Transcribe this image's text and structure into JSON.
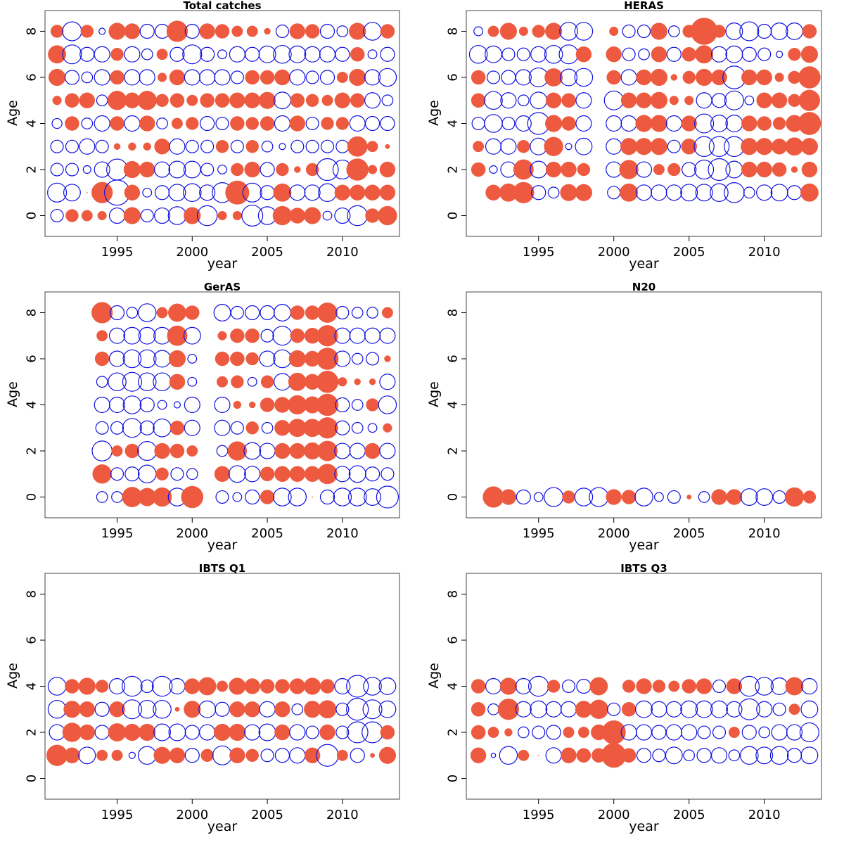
{
  "colors": {
    "positive": "#ee5a3f",
    "negative": "#1010e0",
    "frame": "#444444"
  },
  "chart_data": [
    {
      "type": "bubble",
      "title": "Total catches",
      "xlabel": "year",
      "ylabel": "Age",
      "xlim": [
        1990.2,
        2013.8
      ],
      "ylim": [
        -0.9,
        8.9
      ],
      "xticks": [
        1995,
        2000,
        2005,
        2010
      ],
      "yticks": [
        0,
        2,
        4,
        6,
        8
      ],
      "years": [
        1991,
        1992,
        1993,
        1994,
        1995,
        1996,
        1997,
        1998,
        1999,
        2000,
        2001,
        2002,
        2003,
        2004,
        2005,
        2006,
        2007,
        2008,
        2009,
        2010,
        2011,
        2012,
        2013
      ],
      "ages": [
        0,
        1,
        2,
        3,
        4,
        5,
        6,
        7,
        8
      ],
      "values": [
        [
          -0.4,
          0.4,
          0.3,
          0.2,
          -0.6,
          0.7,
          -0.4,
          -0.6,
          -0.8,
          0.7,
          -1.0,
          0.2,
          0.2,
          -1.1,
          -0.8,
          0.9,
          0.6,
          0.7,
          -0.2,
          -0.6,
          -1.0,
          0.5,
          0.9
        ],
        [
          -0.9,
          -0.7,
          0.0,
          1.1,
          -1.6,
          0.6,
          -0.2,
          -0.5,
          -0.7,
          -0.8,
          -0.6,
          -1.0,
          1.4,
          -0.9,
          -0.5,
          0.8,
          -0.6,
          -0.6,
          -0.8,
          0.6,
          0.6,
          0.6,
          0.6
        ],
        [
          -0.4,
          -0.4,
          -0.15,
          -0.6,
          -1.1,
          0.7,
          0.6,
          -0.6,
          -0.7,
          -0.7,
          -0.4,
          -0.2,
          0.4,
          0.6,
          -0.5,
          0.4,
          0.1,
          0.4,
          -1.2,
          -0.9,
          1.2,
          0.2,
          0.6
        ],
        [
          -0.4,
          -0.4,
          -0.6,
          -0.4,
          0.1,
          0.15,
          0.15,
          0.6,
          -0.6,
          -0.4,
          -0.4,
          0.4,
          -0.4,
          0.4,
          -0.3,
          -0.1,
          -0.4,
          -0.4,
          -0.4,
          -0.4,
          1.0,
          0.3,
          0.05
        ],
        [
          -0.25,
          0.5,
          -0.3,
          -0.6,
          0.5,
          -0.6,
          0.6,
          -0.3,
          0.3,
          0.4,
          -0.5,
          -0.4,
          0.5,
          0.4,
          0.5,
          -0.6,
          0.6,
          -0.4,
          0.4,
          0.4,
          -0.6,
          -0.5,
          -0.5
        ],
        [
          0.2,
          0.5,
          0.6,
          -0.3,
          0.9,
          0.6,
          0.9,
          0.4,
          0.5,
          0.3,
          0.5,
          0.5,
          0.6,
          0.6,
          0.7,
          -0.7,
          0.5,
          0.4,
          0.3,
          0.6,
          0.5,
          -0.6,
          -0.3
        ],
        [
          0.7,
          -0.5,
          -0.3,
          -0.6,
          0.5,
          -0.6,
          -0.6,
          0.2,
          0.6,
          -0.6,
          -0.6,
          -0.6,
          -0.4,
          0.5,
          0.5,
          0.6,
          -0.6,
          -0.4,
          -0.5,
          0.3,
          0.7,
          -0.6,
          -0.8
        ],
        [
          0.8,
          -0.9,
          -0.5,
          -0.6,
          0.4,
          -0.6,
          -0.3,
          0.3,
          -0.5,
          -0.9,
          -0.5,
          -0.2,
          -0.6,
          -0.5,
          -0.7,
          -0.8,
          -0.7,
          -0.6,
          -0.6,
          -0.5,
          0.5,
          -0.2,
          -0.5
        ],
        [
          0.4,
          -0.9,
          0.4,
          -0.1,
          0.7,
          0.6,
          -0.5,
          -0.5,
          1.1,
          -0.5,
          0.6,
          0.5,
          0.3,
          0.3,
          0.1,
          -0.4,
          0.6,
          0.5,
          -0.5,
          -0.3,
          0.7,
          -0.8,
          0.5
        ]
      ]
    },
    {
      "type": "bubble",
      "title": "HERAS",
      "xlabel": "year",
      "ylabel": "Age",
      "xlim": [
        1990.2,
        2013.8
      ],
      "ylim": [
        -0.9,
        8.9
      ],
      "xticks": [
        1995,
        2000,
        2005,
        2010
      ],
      "yticks": [
        0,
        2,
        4,
        6,
        8
      ],
      "years": [
        1991,
        1992,
        1993,
        1994,
        1995,
        1996,
        1997,
        1998,
        1999,
        2000,
        2001,
        2002,
        2003,
        2004,
        2005,
        2006,
        2007,
        2008,
        2009,
        2010,
        2011,
        2012,
        2013
      ],
      "ages": [
        0,
        1,
        2,
        3,
        4,
        5,
        6,
        7,
        8
      ],
      "values": [
        [
          null,
          null,
          null,
          null,
          null,
          null,
          null,
          null,
          null,
          null,
          null,
          null,
          null,
          null,
          null,
          null,
          null,
          null,
          null,
          null,
          null,
          null,
          null
        ],
        [
          null,
          0.6,
          0.8,
          1.1,
          -0.5,
          -0.3,
          0.7,
          0.7,
          null,
          -0.4,
          0.8,
          -0.6,
          -0.6,
          -0.6,
          -0.7,
          -0.7,
          -0.8,
          -1.0,
          -0.3,
          -0.6,
          -0.7,
          -0.5,
          0.8
        ],
        [
          0.5,
          -0.15,
          -0.6,
          1.0,
          -0.7,
          0.6,
          0.6,
          0.4,
          null,
          -0.6,
          0.9,
          -0.6,
          0.3,
          0.4,
          -0.5,
          -0.9,
          -1.2,
          -0.7,
          0.6,
          0.6,
          0.5,
          0.1,
          0.6
        ],
        [
          0.3,
          -0.6,
          -0.6,
          0.4,
          -0.7,
          0.9,
          -0.1,
          -0.7,
          null,
          -0.6,
          0.7,
          0.7,
          0.7,
          -0.4,
          0.6,
          -1.0,
          -1.0,
          -1.0,
          0.7,
          0.7,
          0.6,
          0.8,
          0.7
        ],
        [
          -0.4,
          -0.8,
          -0.4,
          -0.6,
          -1.2,
          0.7,
          0.5,
          -0.6,
          null,
          -0.6,
          -0.6,
          0.7,
          0.7,
          -0.6,
          0.6,
          -0.9,
          -0.7,
          -0.7,
          0.6,
          0.5,
          0.4,
          0.7,
          1.3
        ],
        [
          0.5,
          -0.8,
          -0.6,
          -0.3,
          -0.7,
          0.6,
          0.5,
          -0.6,
          null,
          -0.9,
          0.6,
          0.6,
          0.7,
          0.2,
          0.2,
          -0.6,
          -0.5,
          -0.9,
          -0.2,
          0.6,
          0.6,
          0.4,
          1.1
        ],
        [
          0.5,
          -0.4,
          -0.5,
          -0.6,
          -0.9,
          0.8,
          -0.7,
          -0.8,
          null,
          0.5,
          -0.6,
          0.6,
          0.7,
          0.1,
          0.4,
          0.7,
          0.6,
          -1.3,
          0.6,
          0.6,
          0.2,
          0.4,
          1.2
        ],
        [
          -0.8,
          -0.7,
          -0.4,
          -0.4,
          -0.6,
          -0.8,
          -0.9,
          0.6,
          null,
          0.6,
          -0.4,
          -0.3,
          0.6,
          -0.5,
          0.5,
          0.8,
          -0.6,
          -0.7,
          -0.5,
          -0.4,
          -0.1,
          0.4,
          0.7
        ],
        [
          -0.2,
          0.3,
          0.7,
          0.2,
          0.4,
          0.7,
          -0.8,
          -0.8,
          null,
          0.2,
          -0.4,
          -0.4,
          0.7,
          -0.3,
          0.4,
          1.8,
          0.4,
          -0.7,
          -0.9,
          -0.5,
          -0.7,
          -0.7,
          0.5
        ]
      ]
    },
    {
      "type": "bubble",
      "title": "GerAS",
      "xlabel": "year",
      "ylabel": "Age",
      "xlim": [
        1990.2,
        2013.8
      ],
      "ylim": [
        -0.9,
        8.9
      ],
      "xticks": [
        1995,
        2000,
        2005,
        2010
      ],
      "yticks": [
        0,
        2,
        4,
        6,
        8
      ],
      "years": [
        1991,
        1992,
        1993,
        1994,
        1995,
        1996,
        1997,
        1998,
        1999,
        2000,
        2001,
        2002,
        2003,
        2004,
        2005,
        2006,
        2007,
        2008,
        2009,
        2010,
        2011,
        2012,
        2013
      ],
      "ages": [
        0,
        1,
        2,
        3,
        4,
        5,
        6,
        7,
        8
      ],
      "values": [
        [
          null,
          null,
          null,
          -0.3,
          -0.3,
          1.0,
          0.8,
          0.9,
          -0.8,
          1.2,
          null,
          -0.4,
          -0.2,
          -0.5,
          0.5,
          -0.8,
          -0.8,
          0.0,
          -0.5,
          -0.8,
          -0.8,
          -0.7,
          -1.2
        ],
        [
          null,
          null,
          null,
          0.9,
          -0.4,
          -0.5,
          -0.8,
          0.4,
          -0.4,
          -0.3,
          null,
          0.6,
          -0.7,
          -0.6,
          0.5,
          0.6,
          0.6,
          0.6,
          1.0,
          -0.6,
          -0.7,
          -0.5,
          -0.4
        ],
        [
          null,
          null,
          null,
          -1.0,
          0.3,
          0.5,
          -0.9,
          0.6,
          0.5,
          0.3,
          null,
          -0.3,
          0.9,
          -0.7,
          -0.6,
          0.6,
          0.6,
          0.7,
          1.0,
          -0.6,
          -0.6,
          0.6,
          -0.6
        ],
        [
          null,
          null,
          null,
          -0.4,
          -0.4,
          -0.9,
          -0.5,
          -0.8,
          0.5,
          -0.6,
          null,
          -0.6,
          -0.4,
          0.4,
          -0.3,
          0.6,
          0.8,
          0.8,
          1.1,
          -0.5,
          -0.3,
          -0.2,
          0.2
        ],
        [
          null,
          null,
          null,
          -0.6,
          -0.6,
          -0.8,
          -0.5,
          -0.2,
          -0.1,
          -0.6,
          null,
          -0.6,
          0.15,
          0.1,
          0.5,
          0.6,
          0.9,
          0.7,
          1.2,
          -0.5,
          -0.3,
          0.4,
          -0.8
        ],
        [
          null,
          null,
          null,
          -0.3,
          -0.8,
          -0.9,
          -0.8,
          -0.8,
          0.6,
          -0.2,
          null,
          0.3,
          0.4,
          -0.2,
          0.4,
          -0.7,
          0.8,
          0.6,
          1.2,
          0.2,
          0.1,
          0.1,
          -0.6
        ],
        [
          null,
          null,
          null,
          0.5,
          -0.6,
          -0.8,
          -0.8,
          -0.7,
          0.7,
          -0.2,
          null,
          0.5,
          0.5,
          0.4,
          -0.6,
          -0.8,
          0.7,
          0.6,
          1.2,
          -0.6,
          -0.3,
          -0.4,
          0.1
        ],
        [
          null,
          null,
          null,
          0.3,
          -0.6,
          -0.7,
          -0.7,
          -0.7,
          1.0,
          -0.7,
          null,
          0.2,
          0.5,
          0.5,
          -0.4,
          -0.9,
          0.5,
          0.6,
          1.1,
          -0.6,
          -0.6,
          -0.6,
          -0.6
        ],
        [
          null,
          null,
          null,
          1.1,
          -0.5,
          -0.3,
          -0.8,
          0.3,
          0.8,
          0.5,
          null,
          -0.7,
          -0.4,
          -0.5,
          -0.5,
          -0.7,
          0.5,
          0.5,
          1.0,
          -0.4,
          -0.3,
          -0.3,
          0.3
        ]
      ]
    },
    {
      "type": "bubble",
      "title": "N20",
      "xlabel": "year",
      "ylabel": "Age",
      "xlim": [
        1990.2,
        2013.8
      ],
      "ylim": [
        -0.9,
        8.9
      ],
      "xticks": [
        1995,
        2000,
        2005,
        2010
      ],
      "yticks": [
        0,
        2,
        4,
        6,
        8
      ],
      "years": [
        1992,
        1993,
        1994,
        1995,
        1996,
        1997,
        1998,
        1999,
        2000,
        2001,
        2002,
        2003,
        2004,
        2005,
        2006,
        2007,
        2008,
        2009,
        2010,
        2011,
        2012,
        2013
      ],
      "ages": [
        0
      ],
      "values": [
        [
          1.1,
          0.6,
          -0.5,
          -0.2,
          -0.9,
          0.4,
          -0.8,
          -0.9,
          0.6,
          0.5,
          -0.8,
          -0.2,
          -0.4,
          0.05,
          -0.3,
          0.6,
          0.6,
          -0.7,
          -0.7,
          -0.4,
          0.9,
          0.4
        ]
      ]
    },
    {
      "type": "bubble",
      "title": "IBTS Q1",
      "xlabel": "year",
      "ylabel": "Age",
      "xlim": [
        1990.2,
        2013.8
      ],
      "ylim": [
        -0.9,
        8.9
      ],
      "xticks": [
        1995,
        2000,
        2005,
        2010
      ],
      "yticks": [
        0,
        2,
        4,
        6,
        8
      ],
      "years": [
        1991,
        1992,
        1993,
        1994,
        1995,
        1996,
        1997,
        1998,
        1999,
        2000,
        2001,
        2002,
        2003,
        2004,
        2005,
        2006,
        2007,
        2008,
        2009,
        2010,
        2011,
        2012,
        2013
      ],
      "ages": [
        1,
        2,
        3,
        4
      ],
      "values": [
        [
          1.1,
          0.6,
          -0.7,
          0.3,
          0.3,
          -0.1,
          -0.8,
          0.7,
          0.6,
          -0.5,
          0.4,
          -0.9,
          0.6,
          0.4,
          -0.4,
          -0.5,
          -0.6,
          0.6,
          -1.2,
          0.3,
          -0.5,
          0.05,
          0.7
        ],
        [
          -0.6,
          0.9,
          0.6,
          -0.5,
          0.8,
          0.7,
          0.7,
          -0.7,
          -0.7,
          -0.5,
          -0.6,
          0.7,
          0.7,
          -0.6,
          -0.7,
          0.6,
          -0.6,
          -0.4,
          0.6,
          -0.4,
          -1.1,
          -1.1,
          0.5
        ],
        [
          -0.8,
          0.7,
          0.6,
          -0.5,
          0.6,
          -0.9,
          -0.8,
          -0.8,
          0.05,
          0.7,
          -0.7,
          -0.5,
          0.6,
          0.6,
          -0.6,
          0.6,
          -0.3,
          0.7,
          0.8,
          -0.4,
          -1.2,
          -0.9,
          -0.7
        ],
        [
          -0.8,
          0.5,
          0.7,
          0.4,
          -0.6,
          -1.0,
          -0.4,
          -1.0,
          -0.6,
          0.6,
          0.8,
          0.3,
          0.7,
          0.6,
          0.5,
          0.5,
          0.6,
          0.7,
          0.5,
          -0.6,
          -1.2,
          -0.8,
          -0.7
        ]
      ]
    },
    {
      "type": "bubble",
      "title": "IBTS Q3",
      "xlabel": "year",
      "ylabel": "Age",
      "xlim": [
        1990.2,
        2013.8
      ],
      "ylim": [
        -0.9,
        8.9
      ],
      "xticks": [
        1995,
        2000,
        2005,
        2010
      ],
      "yticks": [
        0,
        2,
        4,
        6,
        8
      ],
      "years": [
        1991,
        1992,
        1993,
        1994,
        1995,
        1996,
        1997,
        1998,
        1999,
        2000,
        2001,
        2002,
        2003,
        2004,
        2005,
        2006,
        2007,
        2008,
        2009,
        2010,
        2011,
        2012,
        2013
      ],
      "ages": [
        1,
        2,
        3,
        4
      ],
      "values": [
        [
          0.6,
          -0.05,
          -0.8,
          0.3,
          0.0,
          -0.6,
          0.6,
          0.5,
          0.5,
          1.5,
          0.5,
          -0.5,
          -0.4,
          -0.7,
          -0.3,
          -0.5,
          -0.6,
          -0.3,
          -0.8,
          -0.7,
          -0.8,
          -0.5,
          -0.7
        ],
        [
          0.5,
          0.3,
          0.15,
          -0.3,
          -0.4,
          -0.5,
          0.3,
          0.3,
          0.6,
          1.4,
          -0.6,
          -0.6,
          -0.5,
          -0.6,
          -0.6,
          -0.4,
          -0.4,
          0.3,
          -0.5,
          -0.3,
          -0.6,
          -0.6,
          -0.9
        ],
        [
          0.5,
          -0.3,
          1.1,
          -0.6,
          -0.7,
          -0.6,
          -0.6,
          0.7,
          0.9,
          -0.4,
          0.5,
          -0.7,
          -0.6,
          -0.6,
          -0.7,
          -0.7,
          -0.7,
          -0.6,
          -1.1,
          -0.6,
          -0.4,
          0.3,
          -0.7
        ],
        [
          0.5,
          -0.6,
          0.7,
          -0.6,
          -1.0,
          0.4,
          -0.4,
          -0.5,
          0.8,
          null,
          0.4,
          0.6,
          0.4,
          0.3,
          0.5,
          0.6,
          -0.4,
          0.6,
          -1.0,
          -0.8,
          -0.7,
          0.8,
          -0.6
        ]
      ]
    }
  ]
}
